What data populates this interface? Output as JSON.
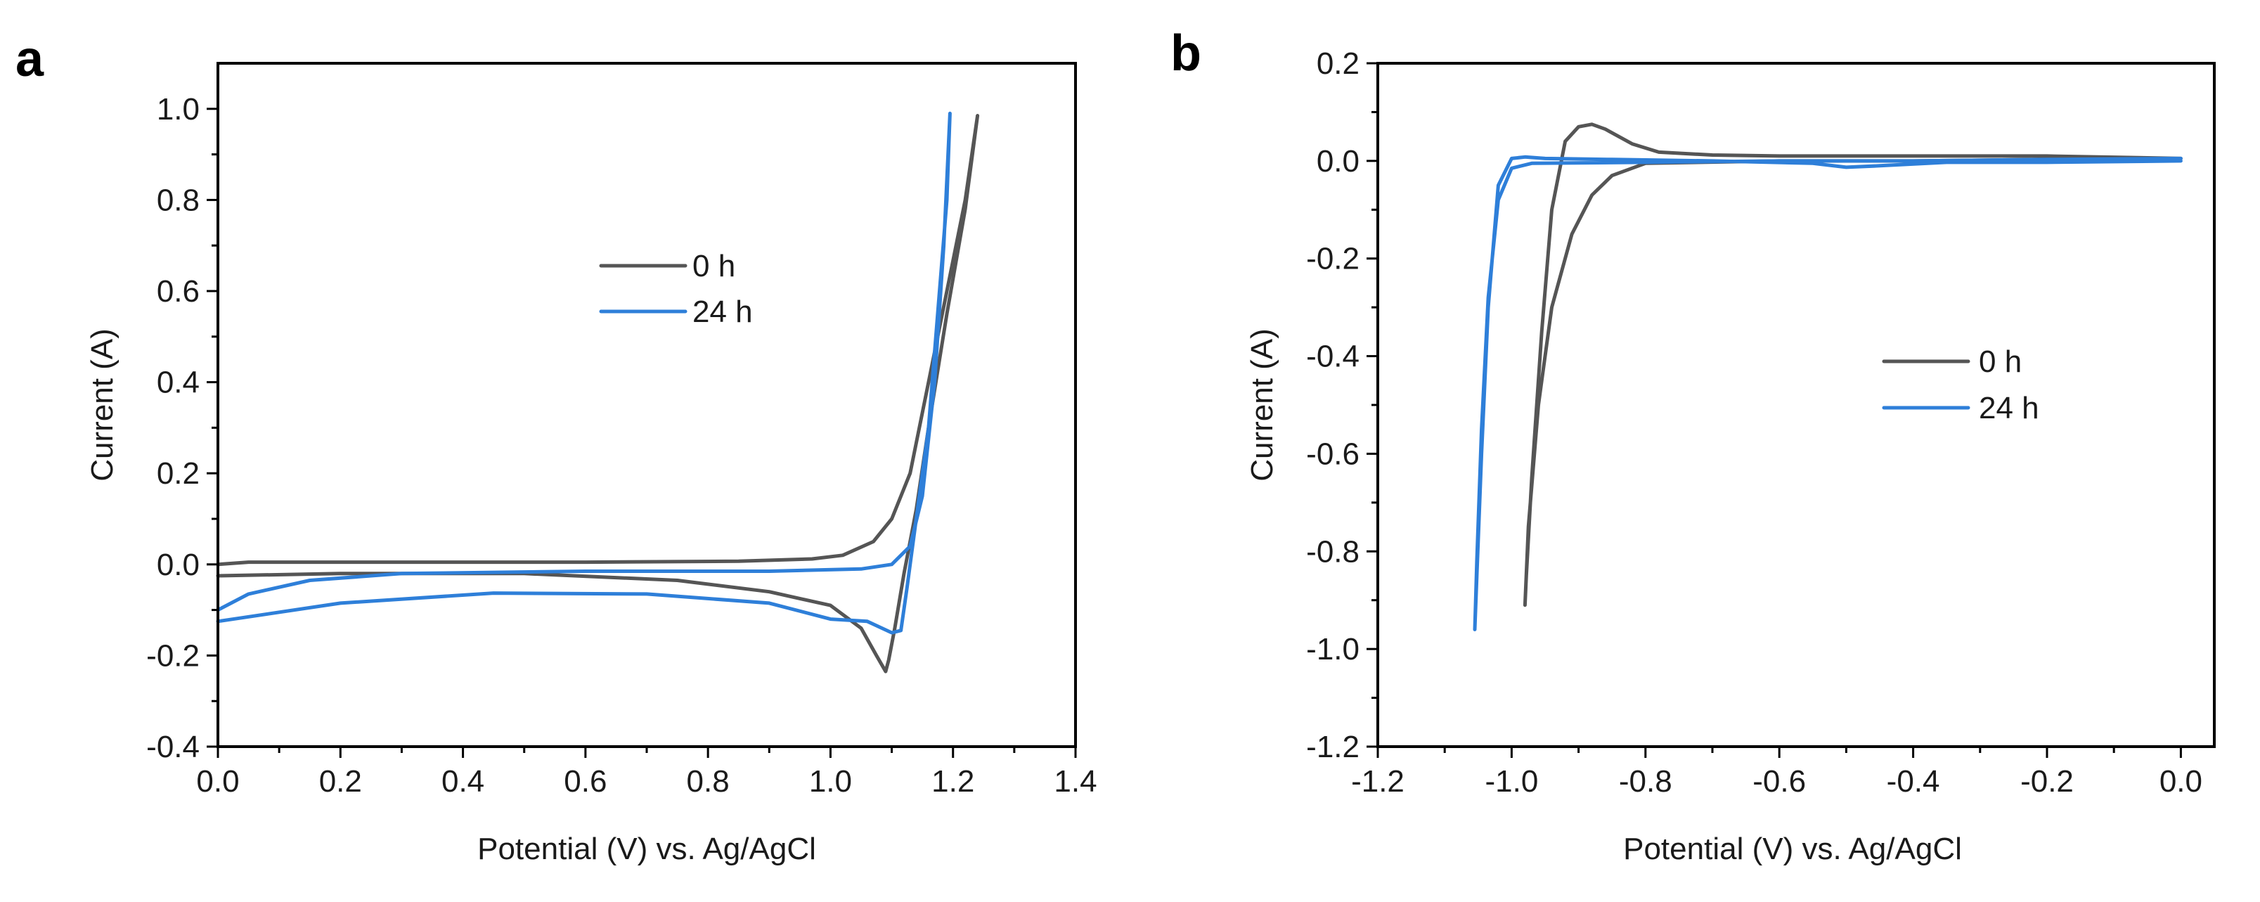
{
  "chart_data": [
    {
      "panel": "a",
      "type": "line",
      "title": "",
      "xlabel": "Potential (V) vs. Ag/AgCl",
      "ylabel": "Current (A)",
      "xlim": [
        0.0,
        1.4
      ],
      "ylim": [
        -0.4,
        1.1
      ],
      "xticks": [
        "0.0",
        "0.2",
        "0.4",
        "0.6",
        "0.8",
        "1.0",
        "1.2",
        "1.4"
      ],
      "yticks": [
        "-0.4",
        "-0.2",
        "0.0",
        "0.2",
        "0.4",
        "0.6",
        "0.8",
        "1.0"
      ],
      "xtick_values": [
        0.0,
        0.2,
        0.4,
        0.6,
        0.8,
        1.0,
        1.2,
        1.4
      ],
      "ytick_values": [
        -0.4,
        -0.2,
        0.0,
        0.2,
        0.4,
        0.6,
        0.8,
        1.0
      ],
      "legend": {
        "position": "upper-middle",
        "entries": [
          "0 h",
          "24 h"
        ]
      },
      "series": [
        {
          "name": "0 h",
          "color": "#555555",
          "points": [
            [
              0.0,
              0.0
            ],
            [
              0.05,
              0.005
            ],
            [
              0.3,
              0.005
            ],
            [
              0.6,
              0.005
            ],
            [
              0.85,
              0.007
            ],
            [
              0.97,
              0.012
            ],
            [
              1.02,
              0.02
            ],
            [
              1.07,
              0.05
            ],
            [
              1.1,
              0.1
            ],
            [
              1.13,
              0.2
            ],
            [
              1.16,
              0.4
            ],
            [
              1.19,
              0.6
            ],
            [
              1.22,
              0.8
            ],
            [
              1.24,
              0.985
            ],
            [
              1.22,
              0.78
            ],
            [
              1.19,
              0.55
            ],
            [
              1.16,
              0.3
            ],
            [
              1.14,
              0.12
            ],
            [
              1.12,
              -0.02
            ],
            [
              1.105,
              -0.14
            ],
            [
              1.095,
              -0.21
            ],
            [
              1.09,
              -0.235
            ],
            [
              1.075,
              -0.2
            ],
            [
              1.05,
              -0.14
            ],
            [
              1.0,
              -0.09
            ],
            [
              0.9,
              -0.06
            ],
            [
              0.75,
              -0.035
            ],
            [
              0.5,
              -0.02
            ],
            [
              0.2,
              -0.02
            ],
            [
              0.0,
              -0.025
            ]
          ]
        },
        {
          "name": "24 h",
          "color": "#2e7fd9",
          "points": [
            [
              0.0,
              -0.1
            ],
            [
              0.05,
              -0.065
            ],
            [
              0.15,
              -0.035
            ],
            [
              0.3,
              -0.02
            ],
            [
              0.6,
              -0.015
            ],
            [
              0.9,
              -0.015
            ],
            [
              1.05,
              -0.01
            ],
            [
              1.1,
              0.0
            ],
            [
              1.13,
              0.04
            ],
            [
              1.15,
              0.15
            ],
            [
              1.17,
              0.4
            ],
            [
              1.185,
              0.7
            ],
            [
              1.195,
              0.99
            ],
            [
              1.19,
              0.8
            ],
            [
              1.175,
              0.55
            ],
            [
              1.16,
              0.3
            ],
            [
              1.14,
              0.1
            ],
            [
              1.125,
              -0.05
            ],
            [
              1.115,
              -0.145
            ],
            [
              1.1,
              -0.15
            ],
            [
              1.06,
              -0.125
            ],
            [
              1.0,
              -0.12
            ],
            [
              0.9,
              -0.085
            ],
            [
              0.7,
              -0.065
            ],
            [
              0.45,
              -0.063
            ],
            [
              0.2,
              -0.085
            ],
            [
              0.0,
              -0.125
            ]
          ]
        }
      ]
    },
    {
      "panel": "b",
      "type": "line",
      "title": "",
      "xlabel": "Potential (V) vs. Ag/AgCl",
      "ylabel": "Current (A)",
      "xlim": [
        -1.2,
        0.05
      ],
      "ylim": [
        -1.2,
        0.2
      ],
      "xticks": [
        "-1.2",
        "-1.0",
        "-0.8",
        "-0.6",
        "-0.4",
        "-0.2",
        "0.0"
      ],
      "yticks": [
        "-1.2",
        "-1.0",
        "-0.8",
        "-0.6",
        "-0.4",
        "-0.2",
        "0.0",
        "0.2"
      ],
      "xtick_values": [
        -1.2,
        -1.0,
        -0.8,
        -0.6,
        -0.4,
        -0.2,
        0.0
      ],
      "ytick_values": [
        -1.2,
        -1.0,
        -0.8,
        -0.6,
        -0.4,
        -0.2,
        0.0,
        0.2
      ],
      "legend": {
        "position": "middle-right",
        "entries": [
          "0 h",
          "24 h"
        ]
      },
      "series": [
        {
          "name": "0 h",
          "color": "#555555",
          "points": [
            [
              0.0,
              0.005
            ],
            [
              -0.2,
              0.01
            ],
            [
              -0.4,
              0.01
            ],
            [
              -0.6,
              0.01
            ],
            [
              -0.7,
              0.012
            ],
            [
              -0.78,
              0.018
            ],
            [
              -0.82,
              0.035
            ],
            [
              -0.86,
              0.065
            ],
            [
              -0.88,
              0.075
            ],
            [
              -0.9,
              0.07
            ],
            [
              -0.92,
              0.04
            ],
            [
              -0.94,
              -0.1
            ],
            [
              -0.955,
              -0.35
            ],
            [
              -0.97,
              -0.65
            ],
            [
              -0.978,
              -0.85
            ],
            [
              -0.98,
              -0.91
            ],
            [
              -0.975,
              -0.75
            ],
            [
              -0.96,
              -0.5
            ],
            [
              -0.94,
              -0.3
            ],
            [
              -0.91,
              -0.15
            ],
            [
              -0.88,
              -0.07
            ],
            [
              -0.85,
              -0.03
            ],
            [
              -0.8,
              -0.005
            ],
            [
              -0.6,
              0.0
            ],
            [
              -0.4,
              0.0
            ],
            [
              -0.2,
              0.003
            ],
            [
              0.0,
              0.005
            ]
          ]
        },
        {
          "name": "24 h",
          "color": "#2e7fd9",
          "points": [
            [
              0.0,
              0.0
            ],
            [
              -0.2,
              -0.003
            ],
            [
              -0.35,
              -0.003
            ],
            [
              -0.45,
              -0.01
            ],
            [
              -0.5,
              -0.013
            ],
            [
              -0.55,
              -0.005
            ],
            [
              -0.7,
              0.0
            ],
            [
              -0.85,
              0.003
            ],
            [
              -0.95,
              0.005
            ],
            [
              -0.98,
              0.008
            ],
            [
              -1.0,
              0.005
            ],
            [
              -1.02,
              -0.05
            ],
            [
              -1.035,
              -0.3
            ],
            [
              -1.045,
              -0.6
            ],
            [
              -1.052,
              -0.85
            ],
            [
              -1.055,
              -0.96
            ],
            [
              -1.052,
              -0.82
            ],
            [
              -1.045,
              -0.55
            ],
            [
              -1.035,
              -0.28
            ],
            [
              -1.02,
              -0.08
            ],
            [
              -1.0,
              -0.015
            ],
            [
              -0.97,
              -0.005
            ],
            [
              -0.8,
              -0.003
            ],
            [
              -0.6,
              0.0
            ],
            [
              -0.4,
              0.0
            ],
            [
              -0.2,
              0.003
            ],
            [
              0.0,
              0.005
            ]
          ]
        }
      ]
    }
  ]
}
